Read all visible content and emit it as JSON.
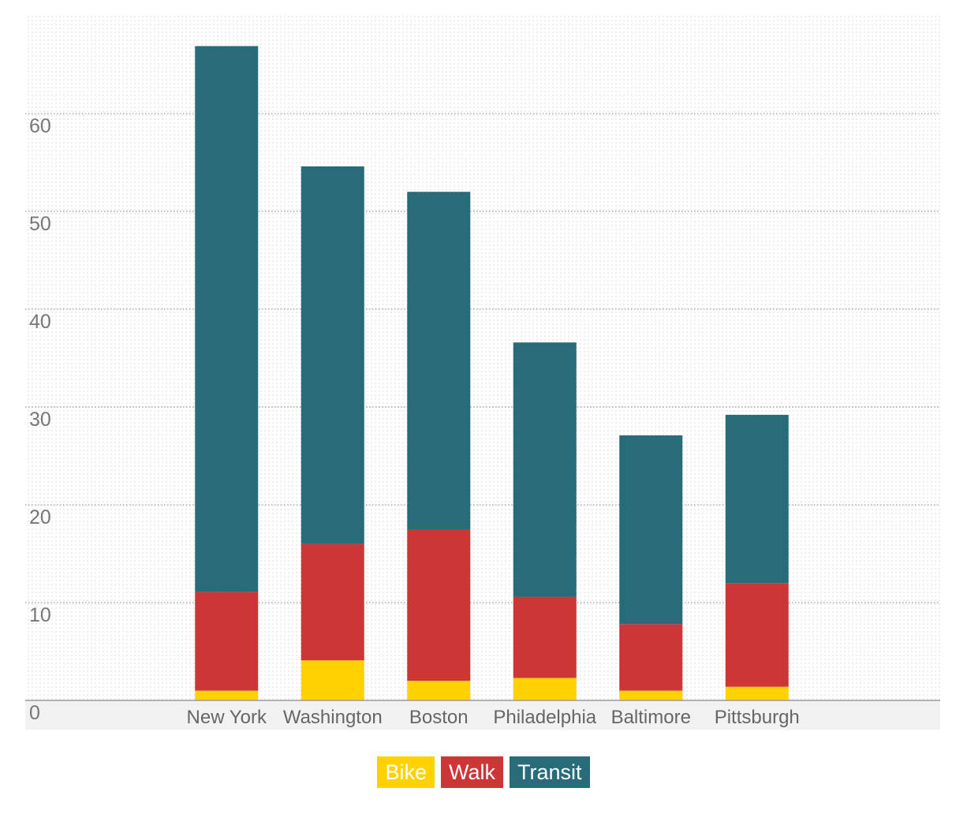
{
  "chart_data": {
    "type": "bar",
    "stacked": true,
    "categories": [
      "New York",
      "Washington",
      "Boston",
      "Philadelphia",
      "Baltimore",
      "Pittsburgh"
    ],
    "series": [
      {
        "name": "Bike",
        "color": "#ffd200",
        "values": [
          1.0,
          4.1,
          2.0,
          2.3,
          1.0,
          1.4
        ]
      },
      {
        "name": "Walk",
        "color": "#cc3636",
        "values": [
          10.1,
          11.9,
          15.5,
          8.3,
          6.8,
          10.6
        ]
      },
      {
        "name": "Transit",
        "color": "#286c7a",
        "values": [
          55.8,
          38.6,
          34.5,
          26.0,
          19.3,
          17.2
        ]
      }
    ],
    "ylim": [
      0,
      70
    ],
    "yticks": [
      "0",
      "10",
      "20",
      "30",
      "40",
      "50",
      "60"
    ],
    "grid": true,
    "legend_position": "bottom-center",
    "xlabel": "",
    "ylabel": "",
    "title": ""
  }
}
